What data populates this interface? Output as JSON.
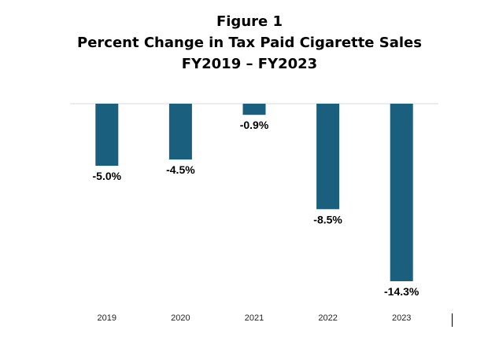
{
  "figure": {
    "label": "Figure 1",
    "title": "Percent Change in Tax Paid Cigarette Sales",
    "subtitle": "FY2019 – FY2023"
  },
  "chart_data": {
    "type": "bar",
    "title": "Percent Change in Tax Paid Cigarette Sales",
    "subtitle": "FY2019 – FY2023",
    "categories": [
      "2019",
      "2020",
      "2021",
      "2022",
      "2023"
    ],
    "values": [
      -5.0,
      -4.5,
      -0.9,
      -8.5,
      -14.3
    ],
    "data_labels": [
      "-5.0%",
      "-4.5%",
      "-0.9%",
      "-8.5%",
      "-14.3%"
    ],
    "xlabel": "",
    "ylabel": "",
    "ylim": [
      -14.3,
      0
    ],
    "grid": false,
    "legend": "none",
    "bar_color": "#1b5f7e",
    "axis_color": "#d9d9d9"
  }
}
